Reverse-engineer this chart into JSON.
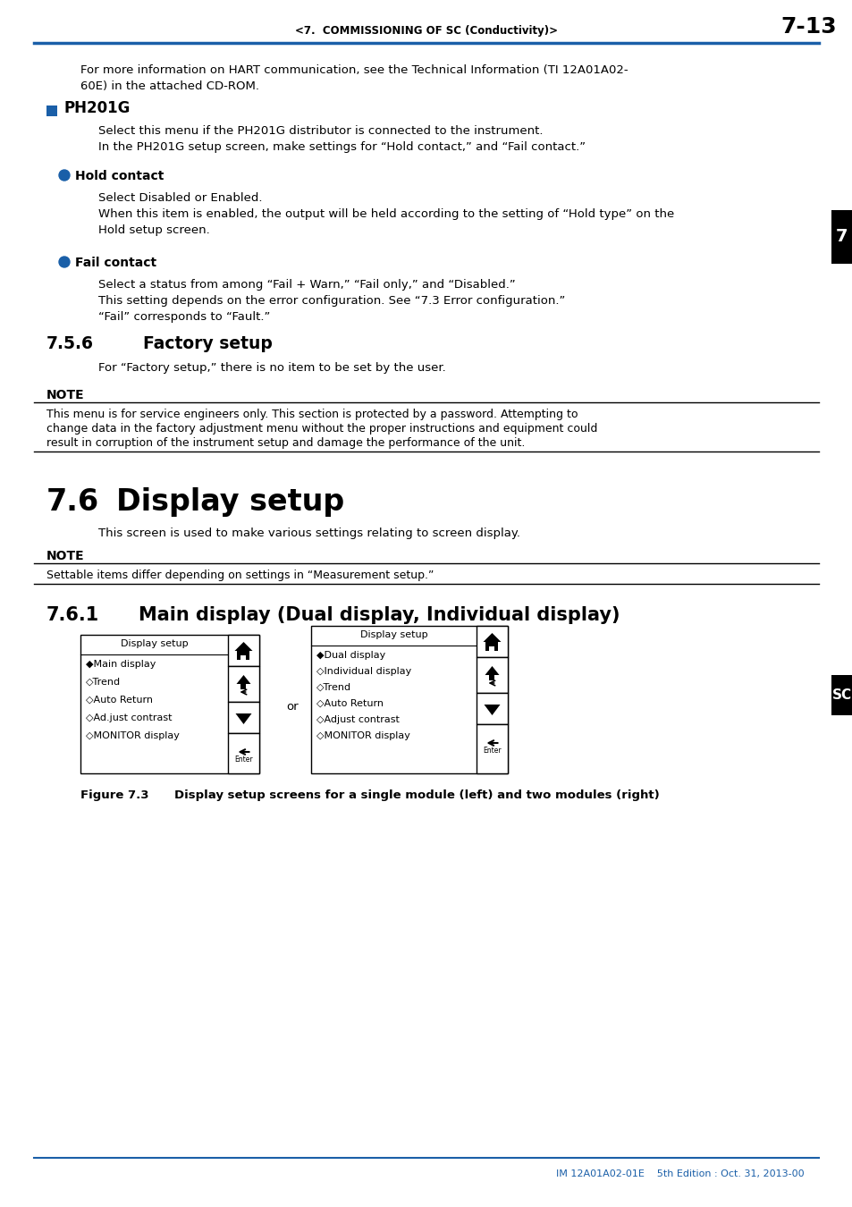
{
  "page_header_text": "<7.  COMMISSIONING OF SC (Conductivity)>",
  "page_number": "7-13",
  "header_line_color": "#1a5fa8",
  "tab_color": "#000000",
  "tab_text": "7",
  "sc_tab_color": "#000000",
  "sc_tab_text": "SC",
  "body_bg": "#ffffff",
  "text_color": "#000000",
  "blue_color": "#1a5fa8",
  "bullet_color": "#1a5fa8",
  "square_bullet_color": "#1a5fa8",
  "intro_line1": "For more information on HART communication, see the Technical Information (TI 12A01A02-",
  "intro_line2": "60E) in the attached CD-ROM.",
  "ph201g_heading": "PH201G",
  "ph201g_text1": "Select this menu if the PH201G distributor is connected to the instrument.",
  "ph201g_text2": "In the PH201G setup screen, make settings for “Hold contact,” and “Fail contact.”",
  "hold_contact_heading": "Hold contact",
  "hold_text1": "Select Disabled or Enabled.",
  "hold_text2a": "When this item is enabled, the output will be held according to the setting of “Hold type” on the",
  "hold_text2b": "Hold setup screen.",
  "fail_contact_heading": "Fail contact",
  "fail_text1": "Select a status from among “Fail + Warn,” “Fail only,” and “Disabled.”",
  "fail_text2": "This setting depends on the error configuration. See “7.3 Error configuration.”",
  "fail_text3": "“Fail” corresponds to “Fault.”",
  "factory_section": "7.5.6",
  "factory_heading": "Factory setup",
  "factory_text": "For “Factory setup,” there is no item to be set by the user.",
  "note_heading": "NOTE",
  "note_line1": "This menu is for service engineers only. This section is protected by a password. Attempting to",
  "note_line2": "change data in the factory adjustment menu without the proper instructions and equipment could",
  "note_line3": "result in corruption of the instrument setup and damage the performance of the unit.",
  "display_section": "7.6",
  "display_heading": "Display setup",
  "display_subtext": "This screen is used to make various settings relating to screen display.",
  "note2_heading": "NOTE",
  "note2_text": "Settable items differ depending on settings in “Measurement setup.”",
  "main_section": "7.6.1",
  "main_heading": "Main display (Dual display, Individual display)",
  "left_panel_title": "Display setup",
  "left_panel_items": [
    "◆Main display",
    "◇Trend",
    "◇Auto Return",
    "◇Ad.just contrast",
    "◇MONITOR display"
  ],
  "right_panel_title": "Display setup",
  "right_panel_items": [
    "◆Dual display",
    "◇Individual display",
    "◇Trend",
    "◇Auto Return",
    "◇Adjust contrast",
    "◇MONITOR display"
  ],
  "or_text": "or",
  "figure_label": "Figure 7.3",
  "figure_caption": "Display setup screens for a single module (left) and two modules (right)",
  "footer_text": "IM 12A01A02-01E    5th Edition : Oct. 31, 2013-00",
  "footer_color": "#1a5fa8",
  "footer_line_color": "#1a5fa8"
}
